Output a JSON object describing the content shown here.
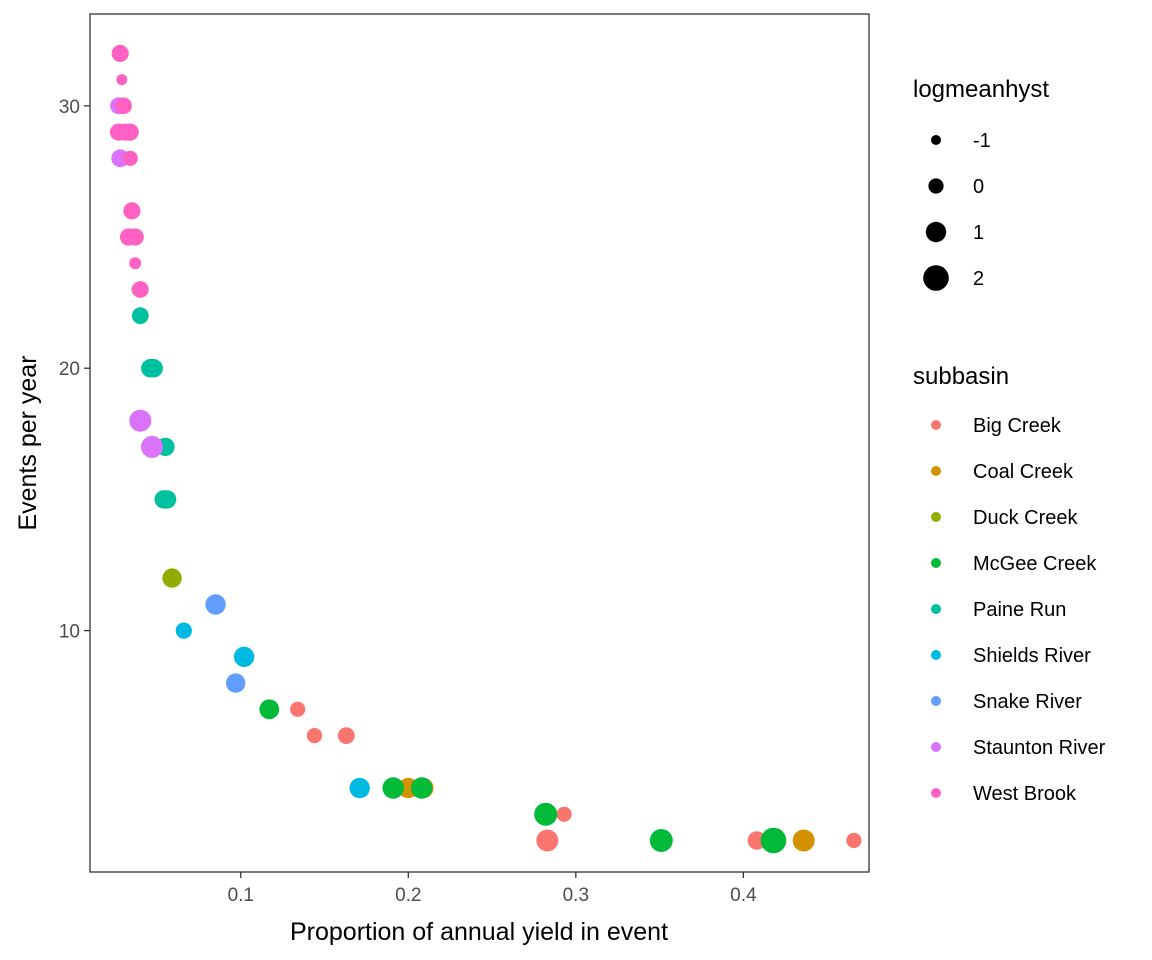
{
  "chart_data": {
    "type": "scatter",
    "xlabel": "Proportion of annual yield in event",
    "ylabel": "Events per year",
    "xlim": [
      0.01,
      0.475
    ],
    "ylim": [
      0.8,
      33.5
    ],
    "x_ticks": [
      0.1,
      0.2,
      0.3,
      0.4
    ],
    "x_tick_labels": [
      "0.1",
      "0.2",
      "0.3",
      "0.4"
    ],
    "y_ticks": [
      10,
      20,
      30
    ],
    "y_tick_labels": [
      "10",
      "20",
      "30"
    ],
    "grid": false,
    "legends": [
      {
        "title": "logmeanhyst",
        "kind": "size",
        "entries": [
          {
            "label": "-1",
            "value": -1
          },
          {
            "label": "0",
            "value": 0
          },
          {
            "label": "1",
            "value": 1
          },
          {
            "label": "2",
            "value": 2
          }
        ]
      },
      {
        "title": "subbasin",
        "kind": "color",
        "entries": [
          {
            "label": "Big Creek",
            "color": "#F8766D"
          },
          {
            "label": "Coal Creek",
            "color": "#D39200"
          },
          {
            "label": "Duck Creek",
            "color": "#93AA00"
          },
          {
            "label": "McGee Creek",
            "color": "#00BA38"
          },
          {
            "label": "Paine Run",
            "color": "#00C19F"
          },
          {
            "label": "Shields River",
            "color": "#00B9E3"
          },
          {
            "label": "Snake River",
            "color": "#619CFF"
          },
          {
            "label": "Staunton River",
            "color": "#DB72FB"
          },
          {
            "label": "West Brook",
            "color": "#FF61C3"
          }
        ]
      }
    ],
    "legend_position": "right",
    "series": [
      {
        "name": "Big Creek",
        "color": "#F8766D",
        "points": [
          {
            "x": 0.134,
            "y": 7,
            "size": 0
          },
          {
            "x": 0.144,
            "y": 6,
            "size": 0
          },
          {
            "x": 0.163,
            "y": 6,
            "size": 0.3
          },
          {
            "x": 0.293,
            "y": 3,
            "size": 0
          },
          {
            "x": 0.283,
            "y": 2,
            "size": 1.3
          },
          {
            "x": 0.408,
            "y": 2,
            "size": 0.6
          },
          {
            "x": 0.466,
            "y": 2,
            "size": 0
          }
        ]
      },
      {
        "name": "Coal Creek",
        "color": "#D39200",
        "points": [
          {
            "x": 0.2,
            "y": 4,
            "size": 1
          },
          {
            "x": 0.209,
            "y": 4,
            "size": 1
          },
          {
            "x": 0.436,
            "y": 2,
            "size": 1.3
          }
        ]
      },
      {
        "name": "Duck Creek",
        "color": "#93AA00",
        "points": [
          {
            "x": 0.059,
            "y": 12,
            "size": 0.8
          }
        ]
      },
      {
        "name": "McGee Creek",
        "color": "#00BA38",
        "points": [
          {
            "x": 0.117,
            "y": 7,
            "size": 0.9
          },
          {
            "x": 0.191,
            "y": 4,
            "size": 1.2
          },
          {
            "x": 0.208,
            "y": 4,
            "size": 1.2
          },
          {
            "x": 0.282,
            "y": 3,
            "size": 1.5
          },
          {
            "x": 0.351,
            "y": 2,
            "size": 1.5
          },
          {
            "x": 0.418,
            "y": 2,
            "size": 2
          }
        ]
      },
      {
        "name": "Paine Run",
        "color": "#00C19F",
        "points": [
          {
            "x": 0.039,
            "y": 23,
            "size": -0.2
          },
          {
            "x": 0.04,
            "y": 22,
            "size": 0.3
          },
          {
            "x": 0.046,
            "y": 20,
            "size": 0.6
          },
          {
            "x": 0.048,
            "y": 20,
            "size": 0.6
          },
          {
            "x": 0.055,
            "y": 17,
            "size": 0.6
          },
          {
            "x": 0.054,
            "y": 15,
            "size": 0.6
          },
          {
            "x": 0.056,
            "y": 15,
            "size": 0.6
          }
        ]
      },
      {
        "name": "Shields River",
        "color": "#00B9E3",
        "points": [
          {
            "x": 0.066,
            "y": 10,
            "size": 0.2
          },
          {
            "x": 0.102,
            "y": 9,
            "size": 1.0
          },
          {
            "x": 0.171,
            "y": 4,
            "size": 1.0
          }
        ]
      },
      {
        "name": "Snake River",
        "color": "#619CFF",
        "points": [
          {
            "x": 0.085,
            "y": 11,
            "size": 1.0
          },
          {
            "x": 0.097,
            "y": 8,
            "size": 0.8
          }
        ]
      },
      {
        "name": "Staunton River",
        "color": "#DB72FB",
        "points": [
          {
            "x": 0.027,
            "y": 30,
            "size": 0.3
          },
          {
            "x": 0.028,
            "y": 28,
            "size": 0.5
          },
          {
            "x": 0.04,
            "y": 18,
            "size": 1.3
          },
          {
            "x": 0.047,
            "y": 17,
            "size": 1.3
          }
        ]
      },
      {
        "name": "West Brook",
        "color": "#FF61C3",
        "points": [
          {
            "x": 0.028,
            "y": 32,
            "size": 0.4
          },
          {
            "x": 0.029,
            "y": 31,
            "size": -0.8
          },
          {
            "x": 0.03,
            "y": 30,
            "size": 0.3
          },
          {
            "x": 0.027,
            "y": 29,
            "size": 0.4
          },
          {
            "x": 0.031,
            "y": 29,
            "size": 0.4
          },
          {
            "x": 0.034,
            "y": 29,
            "size": 0.4
          },
          {
            "x": 0.034,
            "y": 28,
            "size": 0
          },
          {
            "x": 0.035,
            "y": 26,
            "size": 0.4
          },
          {
            "x": 0.033,
            "y": 25,
            "size": 0.4
          },
          {
            "x": 0.037,
            "y": 25,
            "size": 0.4
          },
          {
            "x": 0.037,
            "y": 24,
            "size": -0.6
          },
          {
            "x": 0.04,
            "y": 23,
            "size": 0.3
          }
        ]
      }
    ]
  }
}
